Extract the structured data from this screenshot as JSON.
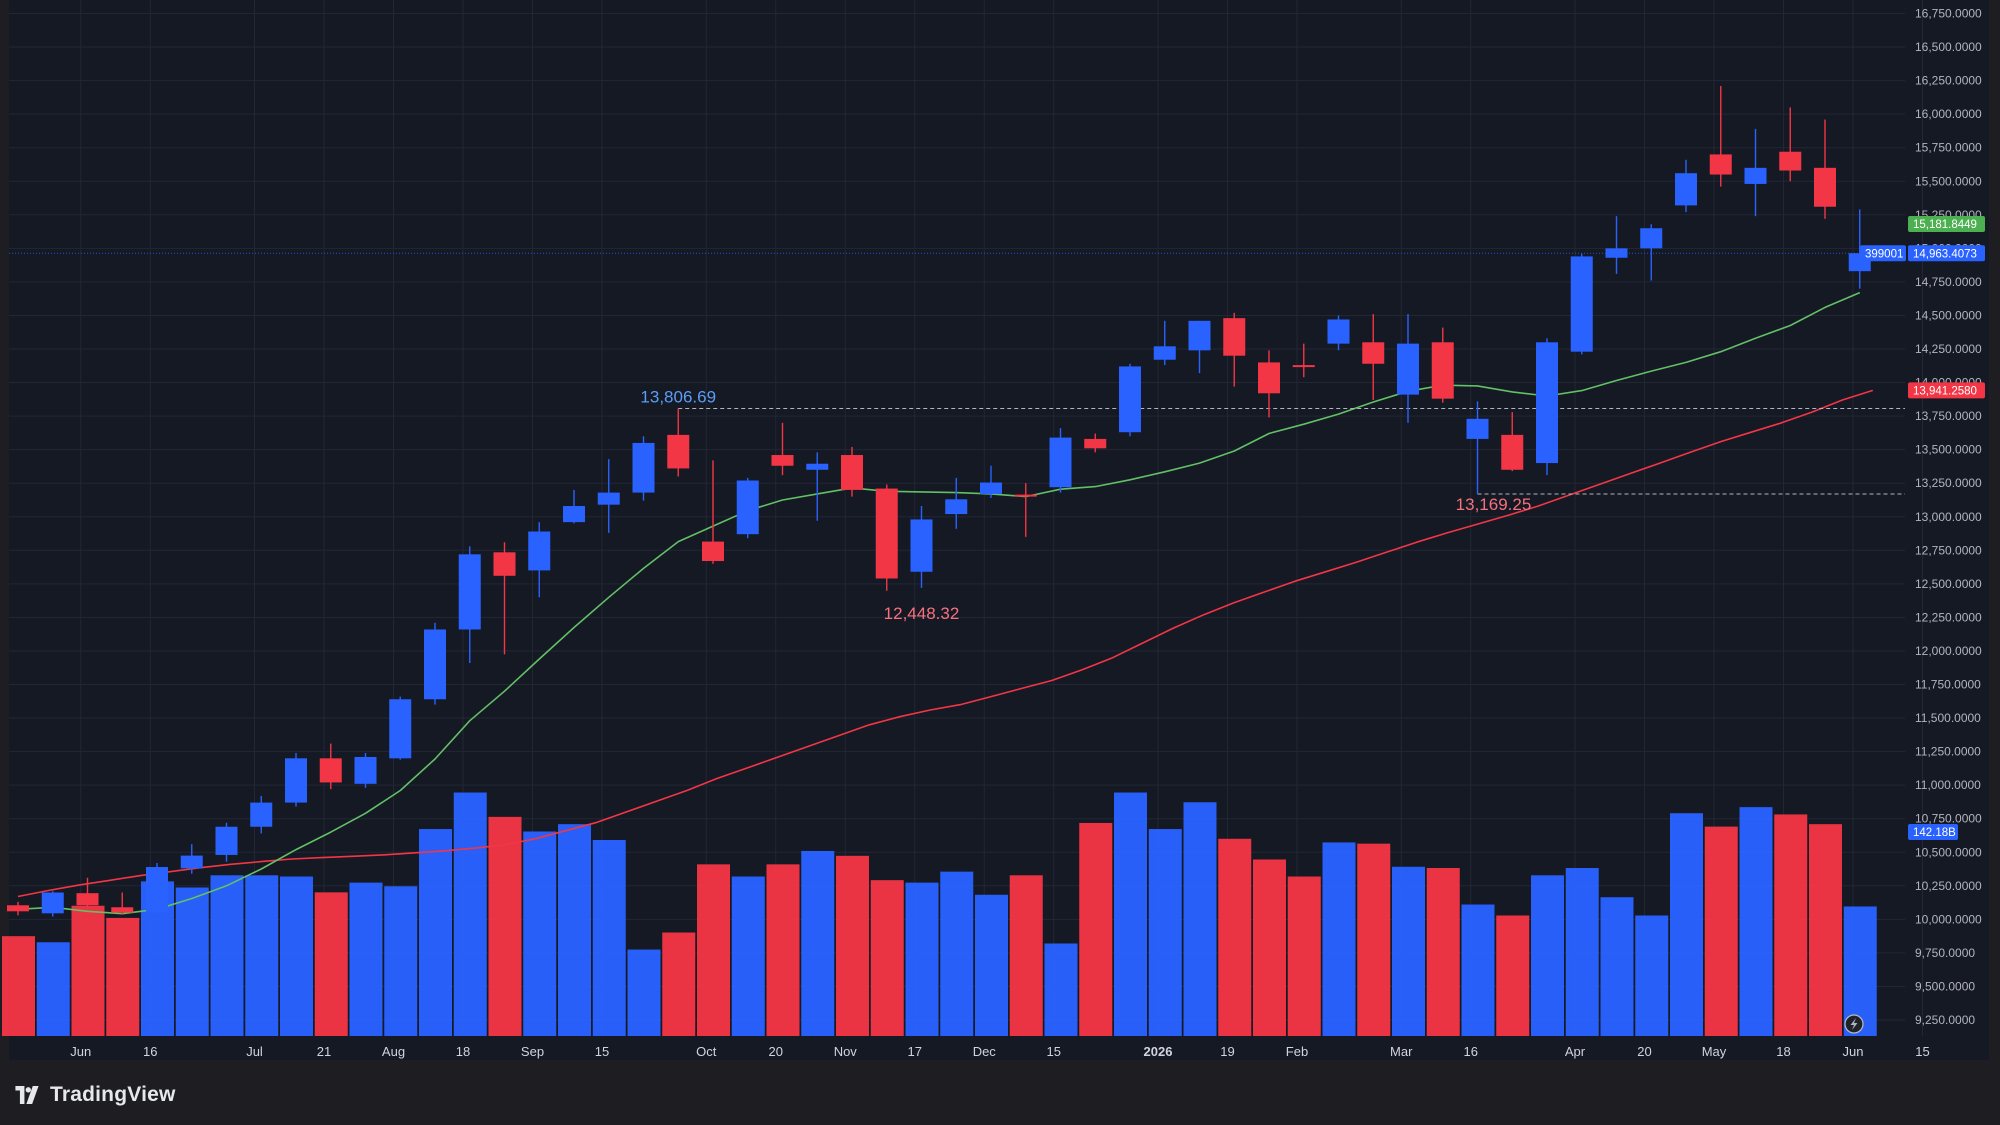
{
  "brand": {
    "name": "TradingView"
  },
  "colors": {
    "background": "#151924",
    "frame": "#1e1e22",
    "up": "#2962ff",
    "down": "#f23645",
    "ma_fast": "#62c066",
    "ma_slow": "#f23645",
    "grid": "#232734",
    "high_annotation": "#5b9cf6",
    "low_annotation": "#f7707e"
  },
  "chart_data": {
    "type": "candlestick",
    "interval": "weekly",
    "grid": true,
    "ylim": [
      9100,
      16900
    ],
    "y_ticks": [
      "16,750.0000",
      "16,500.0000",
      "16,250.0000",
      "16,000.0000",
      "15,750.0000",
      "15,500.0000",
      "15,250.0000",
      "15,000.0000",
      "14,750.0000",
      "14,500.0000",
      "14,250.0000",
      "14,000.0000",
      "13,750.0000",
      "13,500.0000",
      "13,250.0000",
      "13,000.0000",
      "12,750.0000",
      "12,500.0000",
      "12,250.0000",
      "12,000.0000",
      "11,750.0000",
      "11,500.0000",
      "11,250.0000",
      "11,000.0000",
      "10,750.0000",
      "10,500.0000",
      "10,250.0000",
      "10,000.0000",
      "9,750.0000",
      "9,500.0000",
      "9,250.0000"
    ],
    "x_ticks": [
      {
        "label": "Jun",
        "i": 1
      },
      {
        "label": "16",
        "i": 3
      },
      {
        "label": "Jul",
        "i": 6
      },
      {
        "label": "21",
        "i": 8
      },
      {
        "label": "Aug",
        "i": 10
      },
      {
        "label": "18",
        "i": 12
      },
      {
        "label": "Sep",
        "i": 14
      },
      {
        "label": "15",
        "i": 16
      },
      {
        "label": "Oct",
        "i": 19
      },
      {
        "label": "20",
        "i": 21
      },
      {
        "label": "Nov",
        "i": 23
      },
      {
        "label": "17",
        "i": 25
      },
      {
        "label": "Dec",
        "i": 27
      },
      {
        "label": "15",
        "i": 29
      },
      {
        "label": "2026",
        "i": 32,
        "bold": true
      },
      {
        "label": "19",
        "i": 34
      },
      {
        "label": "Feb",
        "i": 36
      },
      {
        "label": "Mar",
        "i": 39
      },
      {
        "label": "16",
        "i": 41
      },
      {
        "label": "Apr",
        "i": 44
      },
      {
        "label": "20",
        "i": 46
      },
      {
        "label": "May",
        "i": 48
      },
      {
        "label": "18",
        "i": 50
      },
      {
        "label": "Jun",
        "i": 52
      },
      {
        "label": "15",
        "i": 54
      }
    ],
    "candles": [
      {
        "o": 10105,
        "h": 10130,
        "l": 10030,
        "c": 10060
      },
      {
        "o": 10045,
        "h": 10210,
        "l": 10020,
        "c": 10200
      },
      {
        "o": 10195,
        "h": 10310,
        "l": 10080,
        "c": 10105
      },
      {
        "o": 10090,
        "h": 10200,
        "l": 10035,
        "c": 10050
      },
      {
        "o": 10055,
        "h": 10420,
        "l": 10035,
        "c": 10390
      },
      {
        "o": 10380,
        "h": 10560,
        "l": 10340,
        "c": 10475
      },
      {
        "o": 10480,
        "h": 10720,
        "l": 10430,
        "c": 10690
      },
      {
        "o": 10690,
        "h": 10920,
        "l": 10640,
        "c": 10870
      },
      {
        "o": 10870,
        "h": 11240,
        "l": 10840,
        "c": 11200
      },
      {
        "o": 11200,
        "h": 11310,
        "l": 10970,
        "c": 11020
      },
      {
        "o": 11010,
        "h": 11240,
        "l": 10980,
        "c": 11210
      },
      {
        "o": 11200,
        "h": 11660,
        "l": 11190,
        "c": 11640
      },
      {
        "o": 11640,
        "h": 12210,
        "l": 11600,
        "c": 12160
      },
      {
        "o": 12160,
        "h": 12780,
        "l": 11910,
        "c": 12720
      },
      {
        "o": 12735,
        "h": 12810,
        "l": 11975,
        "c": 12560
      },
      {
        "o": 12600,
        "h": 12960,
        "l": 12400,
        "c": 12890
      },
      {
        "o": 12960,
        "h": 13200,
        "l": 12950,
        "c": 13080
      },
      {
        "o": 13090,
        "h": 13430,
        "l": 12880,
        "c": 13180
      },
      {
        "o": 13180,
        "h": 13600,
        "l": 13120,
        "c": 13550
      },
      {
        "o": 13610,
        "h": 13806.69,
        "l": 13300,
        "c": 13360
      },
      {
        "o": 12815,
        "h": 13420,
        "l": 12650,
        "c": 12670
      },
      {
        "o": 12870,
        "h": 13290,
        "l": 12840,
        "c": 13270
      },
      {
        "o": 13460,
        "h": 13700,
        "l": 13310,
        "c": 13380
      },
      {
        "o": 13350,
        "h": 13480,
        "l": 12970,
        "c": 13395
      },
      {
        "o": 13460,
        "h": 13520,
        "l": 13150,
        "c": 13200
      },
      {
        "o": 13210,
        "h": 13240,
        "l": 12448.32,
        "c": 12540
      },
      {
        "o": 12590,
        "h": 13080,
        "l": 12470,
        "c": 12980
      },
      {
        "o": 13020,
        "h": 13290,
        "l": 12910,
        "c": 13130
      },
      {
        "o": 13170,
        "h": 13380,
        "l": 13140,
        "c": 13255
      },
      {
        "o": 13165,
        "h": 13250,
        "l": 12850,
        "c": 13155
      },
      {
        "o": 13220,
        "h": 13660,
        "l": 13180,
        "c": 13590
      },
      {
        "o": 13580,
        "h": 13620,
        "l": 13480,
        "c": 13510
      },
      {
        "o": 13630,
        "h": 14140,
        "l": 13600,
        "c": 14120
      },
      {
        "o": 14170,
        "h": 14460,
        "l": 14130,
        "c": 14270
      },
      {
        "o": 14240,
        "h": 14460,
        "l": 14070,
        "c": 14460
      },
      {
        "o": 14480,
        "h": 14520,
        "l": 13970,
        "c": 14200
      },
      {
        "o": 14150,
        "h": 14240,
        "l": 13740,
        "c": 13920
      },
      {
        "o": 14130,
        "h": 14290,
        "l": 14040,
        "c": 14120
      },
      {
        "o": 14290,
        "h": 14500,
        "l": 14240,
        "c": 14470
      },
      {
        "o": 14300,
        "h": 14510,
        "l": 13870,
        "c": 14140
      },
      {
        "o": 13910,
        "h": 14510,
        "l": 13700,
        "c": 14290
      },
      {
        "o": 14300,
        "h": 14410,
        "l": 13850,
        "c": 13880
      },
      {
        "o": 13580,
        "h": 13860,
        "l": 13169.25,
        "c": 13730
      },
      {
        "o": 13610,
        "h": 13780,
        "l": 13340,
        "c": 13350
      },
      {
        "o": 13400,
        "h": 14330,
        "l": 13310,
        "c": 14300
      },
      {
        "o": 14230,
        "h": 14960,
        "l": 14210,
        "c": 14940
      },
      {
        "o": 14930,
        "h": 15240,
        "l": 14810,
        "c": 15000
      },
      {
        "o": 15000,
        "h": 15180,
        "l": 14760,
        "c": 15150
      },
      {
        "o": 15320,
        "h": 15660,
        "l": 15270,
        "c": 15560
      },
      {
        "o": 15700,
        "h": 16210,
        "l": 15460,
        "c": 15550
      },
      {
        "o": 15480,
        "h": 15890,
        "l": 15240,
        "c": 15600
      },
      {
        "o": 15720,
        "h": 16050,
        "l": 15500,
        "c": 15580
      },
      {
        "o": 15600,
        "h": 15960,
        "l": 15220,
        "c": 15310
      },
      {
        "o": 14830,
        "h": 15290,
        "l": 14700,
        "c": 14963.4073
      }
    ],
    "volume": {
      "max_scale": 11500,
      "values": [
        4100,
        3850,
        5350,
        4850,
        6350,
        6100,
        6600,
        6600,
        6550,
        5900,
        6300,
        6150,
        8500,
        10000,
        9000,
        8400,
        8700,
        8050,
        3550,
        4250,
        7050,
        6550,
        7050,
        7600,
        7400,
        6400,
        6300,
        6750,
        5800,
        6600,
        3800,
        8750,
        10000,
        8500,
        9600,
        8100,
        7250,
        6550,
        7950,
        7900,
        6950,
        6900,
        5400,
        4950,
        6600,
        6900,
        5700,
        4950,
        9150,
        8600,
        9400,
        9100,
        8700,
        5320
      ]
    },
    "ma_fast": [
      10075,
      10090,
      10060,
      10042,
      10075,
      10155,
      10250,
      10375,
      10520,
      10650,
      10790,
      10960,
      11195,
      11480,
      11700,
      11940,
      12175,
      12400,
      12615,
      12815,
      12930,
      13045,
      13125,
      13170,
      13215,
      13190,
      13185,
      13180,
      13170,
      13150,
      13205,
      13225,
      13275,
      13335,
      13400,
      13490,
      13620,
      13690,
      13765,
      13855,
      13935,
      13980,
      13975,
      13930,
      13900,
      13940,
      14015,
      14085,
      14150,
      14230,
      14330,
      14425,
      14560,
      14670,
      14790,
      14900,
      15010,
      15181.8449
    ],
    "ma_fast_start": 0,
    "ma_slow": [
      10170,
      10215,
      10255,
      10290,
      10325,
      10355,
      10385,
      10410,
      10430,
      10450,
      10460,
      10470,
      10480,
      10495,
      10510,
      10530,
      10555,
      10600,
      10660,
      10720,
      10800,
      10880,
      10960,
      11050,
      11130,
      11210,
      11290,
      11370,
      11450,
      11510,
      11560,
      11600,
      11660,
      11720,
      11780,
      11860,
      11950,
      12060,
      12170,
      12270,
      12360,
      12440,
      12520,
      12590,
      12660,
      12735,
      12810,
      12880,
      12945,
      13010,
      13080,
      13160,
      13240,
      13320,
      13400,
      13480,
      13560,
      13630,
      13700,
      13780,
      13870,
      13941.258
    ],
    "ma_slow_step": 0.875,
    "annotations": {
      "high": {
        "label": "13,806.69",
        "value": 13806.69,
        "i": 19
      },
      "low1": {
        "label": "12,448.32",
        "value": 12448.32,
        "i": 26
      },
      "low2": {
        "label": "13,169.25",
        "value": 13169.25,
        "i": 42
      }
    },
    "price_labels": {
      "ma_fast": "15,181.8449",
      "last_price": "14,963.4073",
      "countdown": "399001",
      "ma_slow": "13,941.2580",
      "volume": "142.18B"
    }
  }
}
